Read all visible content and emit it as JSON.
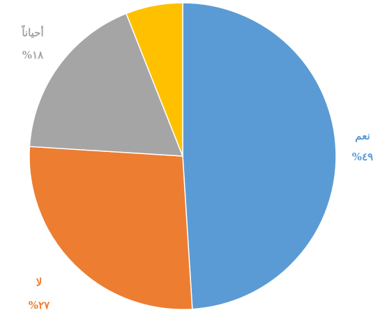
{
  "chart_data": {
    "type": "pie",
    "start_angle_deg": 0,
    "direction": "clockwise",
    "slices": [
      {
        "label": "نعم",
        "value": 49,
        "value_text": "%٤٩",
        "color": "#5B9BD5",
        "label_color": "#5B9BD5"
      },
      {
        "label": "لا",
        "value": 27,
        "value_text": "%٢٧",
        "color": "#ED7D31",
        "label_color": "#ED7D31"
      },
      {
        "label": "أحياناً",
        "value": 18,
        "value_text": "%١٨",
        "color": "#A5A5A5",
        "label_color": "#A5A5A5"
      },
      {
        "label": "",
        "value": 6,
        "value_text": "",
        "color": "#FFC000",
        "label_color": "#FFC000"
      }
    ]
  }
}
